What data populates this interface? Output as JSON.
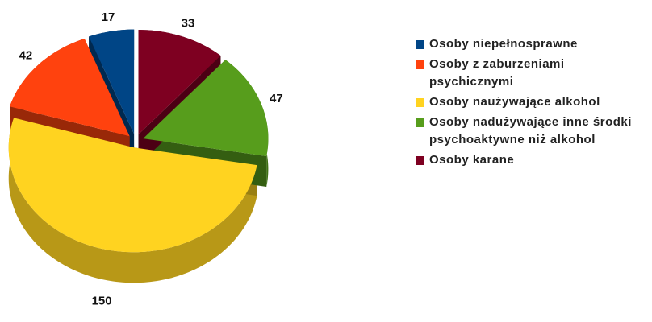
{
  "chart_data": {
    "type": "pie",
    "series": [
      {
        "name": "Osoby niepełnosprawne",
        "color": "#004586",
        "values": [
          17
        ]
      },
      {
        "name": "Osoby z zaburzeniami psychicznymi",
        "color": "#ff420e",
        "values": [
          42
        ]
      },
      {
        "name": "Osoby naużywające alkohol",
        "color": "#ffd320",
        "values": [
          150
        ]
      },
      {
        "name": "Osoby nadużywające inne środki psychoaktywne niż alkohol",
        "color": "#579d1c",
        "values": [
          47
        ]
      },
      {
        "name": "Osoby karane",
        "color": "#7e0021",
        "values": [
          33
        ]
      }
    ],
    "legend": "right"
  }
}
